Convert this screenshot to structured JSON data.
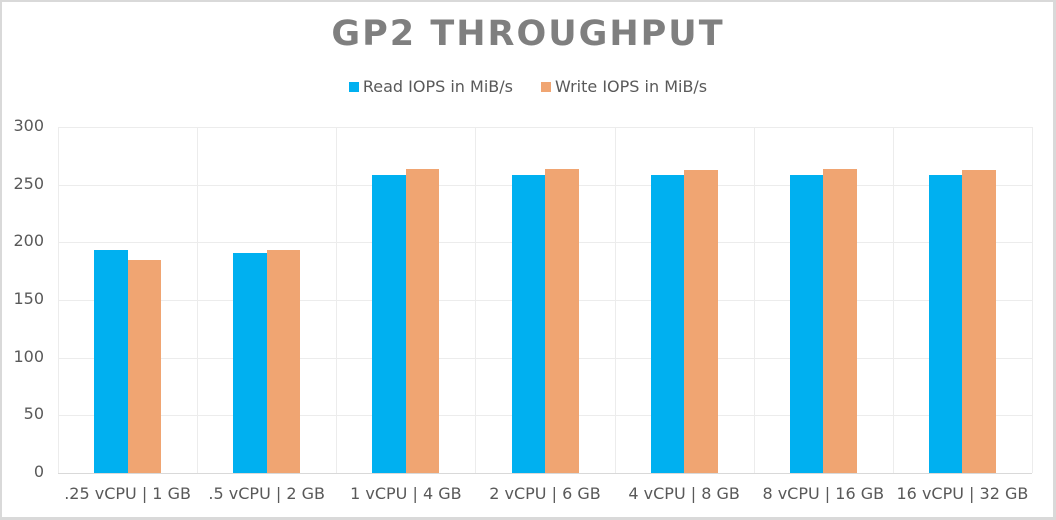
{
  "chart_data": {
    "type": "bar",
    "title": "GP2 THROUGHPUT",
    "xlabel": "",
    "ylabel": "",
    "ylim": [
      0,
      300
    ],
    "yticks": [
      0,
      50,
      100,
      150,
      200,
      250,
      300
    ],
    "grid": true,
    "legend_position": "top",
    "categories": [
      ".25 vCPU | 1 GB",
      ".5 vCPU | 2 GB",
      "1 vCPU | 4 GB",
      "2 vCPU | 6 GB",
      "4 vCPU | 8 GB",
      "8 vCPU | 16 GB",
      "16 vCPU | 32 GB"
    ],
    "series": [
      {
        "name": "Read IOPS in MiB/s",
        "color": "#00B0F0",
        "values": [
          193,
          190.5,
          258.5,
          258.5,
          258.5,
          258,
          258.5
        ]
      },
      {
        "name": "Write IOPS in MiB/s",
        "color": "#F0A572",
        "values": [
          184.5,
          193,
          263.5,
          263.5,
          263,
          263.5,
          263
        ]
      }
    ]
  },
  "colors": {
    "title": "#7F7F7F",
    "text": "#595959",
    "grid": "#ECECEC",
    "border": "#D9D9D9"
  }
}
